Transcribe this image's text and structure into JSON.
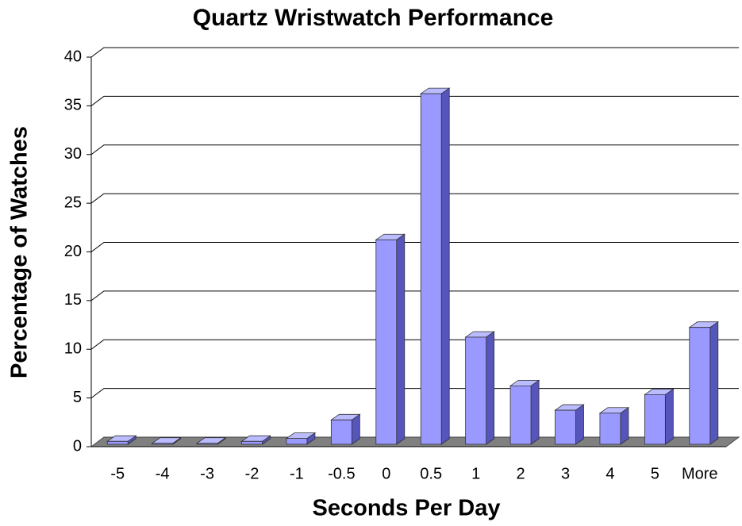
{
  "chart_data": {
    "type": "bar",
    "title": "Quartz Wristwatch Performance",
    "x_label": "Seconds Per Day",
    "y_label": "Percentage of Watches",
    "categories": [
      "-5",
      "-4",
      "-3",
      "-2",
      "-1",
      "-0.5",
      "0",
      "0.5",
      "1",
      "2",
      "3",
      "4",
      "5",
      "More"
    ],
    "values": [
      0.3,
      0.1,
      0.1,
      0.3,
      0.6,
      2.5,
      21,
      36,
      11,
      6,
      3.5,
      3.2,
      5.1,
      12
    ],
    "color": "#9999ff",
    "ylim": [
      0,
      40
    ],
    "yticks": [
      0,
      5,
      10,
      15,
      20,
      25,
      30,
      35,
      40
    ],
    "grid": true
  }
}
